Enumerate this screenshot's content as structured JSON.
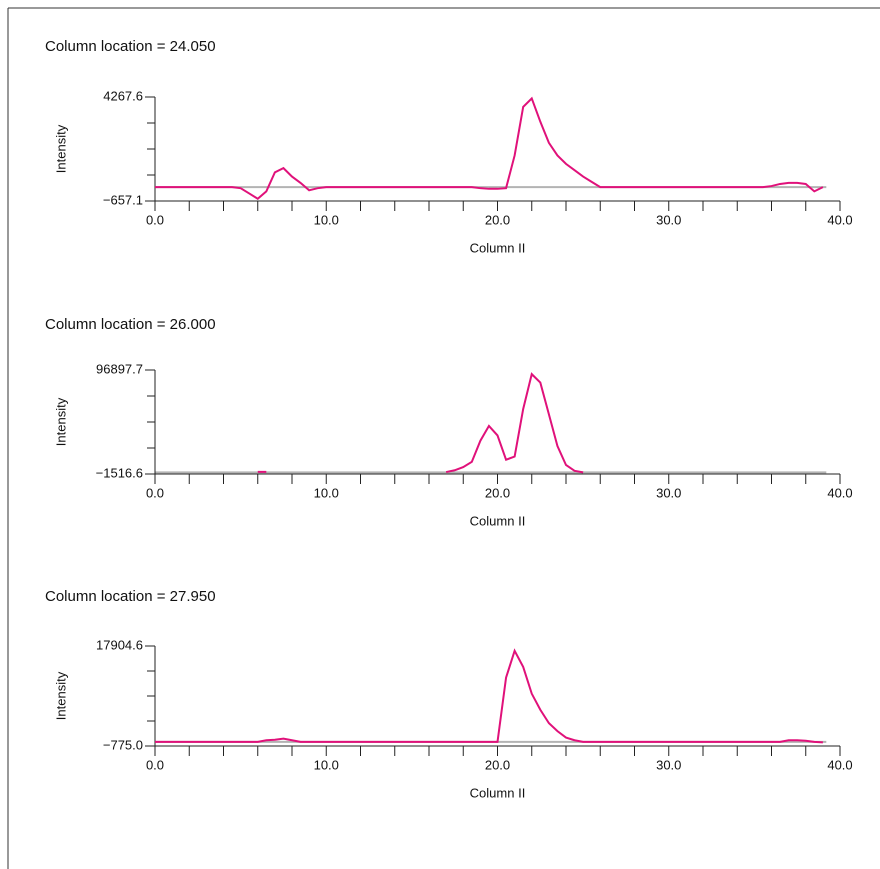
{
  "chart_data": [
    {
      "type": "line",
      "title": "Column location = 24.050",
      "x_label": "Column II",
      "y_label": "Intensity",
      "xlim": [
        0,
        40
      ],
      "ylim": [
        -657.1,
        4267.6
      ],
      "xticks": [
        {
          "value": 0,
          "label": "0.0"
        },
        {
          "value": 10,
          "label": "10.0"
        },
        {
          "value": 20,
          "label": "20.0"
        },
        {
          "value": 30,
          "label": "30.0"
        },
        {
          "value": 40,
          "label": "40.0"
        }
      ],
      "xminor_ticks": [
        2,
        4,
        6,
        8,
        12,
        14,
        16,
        18,
        22,
        24,
        26,
        28,
        32,
        34,
        36,
        38
      ],
      "yticks": [
        {
          "value": -657.1,
          "label": "−657.1"
        },
        4267.6
      ],
      "yminor_ticks": [
        574.075,
        1805.25,
        3036.425
      ],
      "reference_line": 0,
      "reference_color": "#b3b3b3",
      "series": [
        {
          "color": "#e0117a",
          "x": [
            0,
            0.5,
            1,
            1.5,
            2,
            2.5,
            3,
            3.5,
            4,
            4.5,
            5,
            5.5,
            6,
            6.5,
            7,
            7.5,
            8,
            8.5,
            9,
            9.5,
            10,
            10.5,
            11,
            11.5,
            12,
            12.5,
            13,
            13.5,
            14,
            14.5,
            15,
            15.5,
            16,
            16.5,
            17,
            17.5,
            18,
            18.5,
            19,
            19.5,
            20,
            20.5,
            21,
            21.5,
            22,
            22.5,
            23,
            23.5,
            24,
            24.5,
            25,
            25.5,
            26,
            26.5,
            27,
            27.5,
            28,
            28.5,
            29,
            29.5,
            30,
            30.5,
            31,
            31.5,
            32,
            32.5,
            33,
            33.5,
            34,
            34.5,
            35,
            35.5,
            36,
            36.5,
            37,
            37.5,
            38,
            38.5,
            39
          ],
          "values": [
            0,
            0,
            0,
            0,
            0,
            0,
            0,
            0,
            0,
            0,
            -50,
            -300,
            -550,
            -200,
            700,
            900,
            500,
            200,
            -150,
            -50,
            0,
            0,
            0,
            0,
            0,
            0,
            0,
            0,
            0,
            0,
            0,
            0,
            0,
            0,
            0,
            0,
            0,
            0,
            -50,
            -80,
            -80,
            -50,
            1500,
            3800,
            4200,
            3100,
            2100,
            1500,
            1100,
            800,
            500,
            250,
            0,
            0,
            0,
            0,
            0,
            0,
            0,
            0,
            0,
            0,
            0,
            0,
            0,
            0,
            0,
            0,
            0,
            0,
            0,
            0,
            50,
            150,
            200,
            200,
            150,
            -200,
            0
          ]
        }
      ]
    },
    {
      "type": "line",
      "title": "Column location = 26.000",
      "x_label": "Column II",
      "y_label": "Intensity",
      "xlim": [
        0,
        40
      ],
      "ylim": [
        -1516.6,
        96897.7
      ],
      "xticks": [
        {
          "value": 0,
          "label": "0.0"
        },
        {
          "value": 10,
          "label": "10.0"
        },
        {
          "value": 20,
          "label": "20.0"
        },
        {
          "value": 30,
          "label": "30.0"
        },
        {
          "value": 40,
          "label": "40.0"
        }
      ],
      "xminor_ticks": [
        2,
        4,
        6,
        8,
        12,
        14,
        16,
        18,
        22,
        24,
        26,
        28,
        32,
        34,
        36,
        38
      ],
      "yticks": [
        {
          "value": -1516.6,
          "label": "−1516.6"
        },
        96897.7
      ],
      "yminor_ticks": [
        23087,
        47690.55,
        72294.125
      ],
      "reference_line": 0,
      "reference_color": "#b3b3b3",
      "series": [
        {
          "color": "#e0117a",
          "x": [
            0,
            0.5,
            1,
            1.5,
            2,
            2.5,
            3,
            3.5,
            4,
            4.5,
            5,
            5.5,
            6,
            6.5,
            7,
            7.5,
            8,
            8.5,
            9,
            9.5,
            10,
            10.5,
            11,
            11.5,
            12,
            12.5,
            13,
            13.5,
            14,
            14.5,
            15,
            15.5,
            16,
            16.5,
            17,
            17.5,
            18,
            18.5,
            19,
            19.5,
            20,
            20.5,
            21,
            21.5,
            22,
            22.5,
            23,
            23.5,
            24,
            24.5,
            25,
            25.5,
            26,
            26.5,
            27,
            27.5,
            28,
            28.5,
            29,
            29.5,
            30,
            30.5,
            31,
            31.5,
            32,
            32.5,
            33,
            33.5,
            34,
            34.5,
            35,
            35.5,
            36,
            36.5,
            37,
            37.5,
            38,
            38.5,
            39
          ],
          "values": [
            null,
            null,
            null,
            null,
            null,
            null,
            null,
            null,
            null,
            null,
            null,
            null,
            500,
            500,
            null,
            null,
            null,
            null,
            null,
            null,
            null,
            null,
            null,
            null,
            null,
            null,
            null,
            null,
            null,
            null,
            null,
            null,
            null,
            null,
            300,
            2000,
            5000,
            10000,
            30000,
            44000,
            35000,
            12000,
            15000,
            60000,
            93000,
            85000,
            55000,
            25000,
            7000,
            1500,
            0,
            null,
            null,
            null,
            null,
            null,
            null,
            null,
            null,
            null,
            null,
            null,
            null,
            null,
            null,
            null,
            null,
            null,
            null,
            null,
            null,
            null,
            null,
            null,
            null,
            null,
            null,
            null,
            null
          ]
        }
      ]
    },
    {
      "type": "line",
      "title": "Column location = 27.950",
      "x_label": "Column II",
      "y_label": "Intensity",
      "xlim": [
        0,
        40
      ],
      "ylim": [
        -775.0,
        17904.6
      ],
      "xticks": [
        {
          "value": 0,
          "label": "0.0"
        },
        {
          "value": 10,
          "label": "10.0"
        },
        {
          "value": 20,
          "label": "20.0"
        },
        {
          "value": 30,
          "label": "30.0"
        },
        {
          "value": 40,
          "label": "40.0"
        }
      ],
      "xminor_ticks": [
        2,
        4,
        6,
        8,
        12,
        14,
        16,
        18,
        22,
        24,
        26,
        28,
        32,
        34,
        36,
        38
      ],
      "yticks": [
        {
          "value": -775.0,
          "label": "−775.0"
        },
        17904.6
      ],
      "yminor_ticks": [
        3894.9,
        8564.8,
        13234.7
      ],
      "reference_line": 0,
      "reference_color": "#b3b3b3",
      "series": [
        {
          "color": "#e0117a",
          "x": [
            0,
            0.5,
            1,
            1.5,
            2,
            2.5,
            3,
            3.5,
            4,
            4.5,
            5,
            5.5,
            6,
            6.5,
            7,
            7.5,
            8,
            8.5,
            9,
            9.5,
            10,
            10.5,
            11,
            11.5,
            12,
            12.5,
            13,
            13.5,
            14,
            14.5,
            15,
            15.5,
            16,
            16.5,
            17,
            17.5,
            18,
            18.5,
            19,
            19.5,
            20,
            20.5,
            21,
            21.5,
            22,
            22.5,
            23,
            23.5,
            24,
            24.5,
            25,
            25.5,
            26,
            26.5,
            27,
            27.5,
            28,
            28.5,
            29,
            29.5,
            30,
            30.5,
            31,
            31.5,
            32,
            32.5,
            33,
            33.5,
            34,
            34.5,
            35,
            35.5,
            36,
            36.5,
            37,
            37.5,
            38,
            38.5,
            39
          ],
          "values": [
            0,
            0,
            0,
            0,
            0,
            0,
            0,
            0,
            0,
            0,
            0,
            0,
            0,
            300,
            400,
            600,
            300,
            0,
            0,
            0,
            0,
            0,
            0,
            0,
            0,
            0,
            0,
            0,
            0,
            0,
            0,
            0,
            0,
            0,
            0,
            0,
            0,
            0,
            0,
            0,
            0,
            12000,
            17000,
            14000,
            9000,
            6000,
            3500,
            2000,
            800,
            300,
            0,
            0,
            0,
            0,
            0,
            0,
            0,
            0,
            0,
            0,
            0,
            0,
            0,
            0,
            0,
            0,
            0,
            0,
            0,
            0,
            0,
            0,
            0,
            0,
            300,
            300,
            200,
            0,
            -100
          ]
        }
      ]
    }
  ]
}
